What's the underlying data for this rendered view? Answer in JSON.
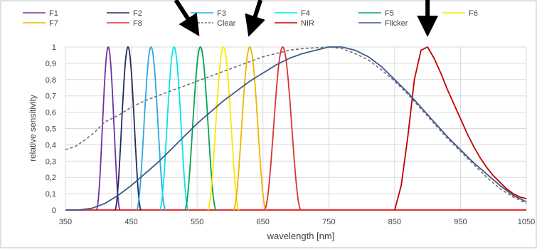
{
  "chart_data": {
    "type": "line",
    "xlabel": "wavelength [nm]",
    "ylabel": "relative sensitivity",
    "xlim": [
      350,
      1050
    ],
    "ylim": [
      0,
      1
    ],
    "x_ticks": [
      "350",
      "450",
      "550",
      "650",
      "750",
      "850",
      "950",
      "1050"
    ],
    "y_ticks": [
      "0",
      "0,1",
      "0,2",
      "0,3",
      "0,4",
      "0,5",
      "0,6",
      "0,7",
      "0,8",
      "0,9",
      "1"
    ],
    "grid": true,
    "legend_position": "top",
    "series": [
      {
        "name": "F1",
        "color": "#7030a0",
        "shape": "bell",
        "peak": 415,
        "halfwidth": 18,
        "points": [
          [
            397,
            0
          ],
          [
            415,
            1
          ],
          [
            433,
            0
          ]
        ]
      },
      {
        "name": "F2",
        "color": "#1f2d5c",
        "shape": "bell",
        "peak": 445,
        "halfwidth": 20,
        "points": [
          [
            425,
            0
          ],
          [
            445,
            1
          ],
          [
            465,
            0
          ]
        ]
      },
      {
        "name": "F3",
        "color": "#29a8e0",
        "shape": "bell",
        "peak": 480,
        "halfwidth": 22,
        "points": [
          [
            458,
            0
          ],
          [
            480,
            1
          ],
          [
            502,
            0
          ]
        ]
      },
      {
        "name": "F4",
        "color": "#00e5ee",
        "shape": "bell",
        "peak": 515,
        "halfwidth": 22,
        "points": [
          [
            493,
            0
          ],
          [
            515,
            1
          ],
          [
            537,
            0
          ]
        ]
      },
      {
        "name": "F5",
        "color": "#00a651",
        "shape": "bell",
        "peak": 555,
        "halfwidth": 24,
        "points": [
          [
            531,
            0
          ],
          [
            555,
            1
          ],
          [
            579,
            0
          ]
        ]
      },
      {
        "name": "F6",
        "color": "#ffe600",
        "shape": "bell",
        "peak": 590,
        "halfwidth": 24,
        "points": [
          [
            566,
            0
          ],
          [
            590,
            1
          ],
          [
            614,
            0
          ]
        ]
      },
      {
        "name": "F7",
        "color": "#f0b400",
        "shape": "bell",
        "peak": 630,
        "halfwidth": 25,
        "points": [
          [
            605,
            0
          ],
          [
            630,
            1
          ],
          [
            655,
            0
          ]
        ]
      },
      {
        "name": "F8",
        "color": "#e03030",
        "shape": "bell",
        "peak": 680,
        "halfwidth": 28,
        "points": [
          [
            652,
            0
          ],
          [
            680,
            1
          ],
          [
            708,
            0
          ]
        ]
      },
      {
        "name": "Clear",
        "color": "#707070",
        "dashed": true,
        "shape": "poly",
        "points": [
          [
            350,
            0.37
          ],
          [
            365,
            0.39
          ],
          [
            380,
            0.43
          ],
          [
            395,
            0.48
          ],
          [
            410,
            0.54
          ],
          [
            430,
            0.58
          ],
          [
            450,
            0.63
          ],
          [
            470,
            0.67
          ],
          [
            490,
            0.7
          ],
          [
            510,
            0.73
          ],
          [
            530,
            0.76
          ],
          [
            550,
            0.79
          ],
          [
            570,
            0.82
          ],
          [
            590,
            0.85
          ],
          [
            610,
            0.88
          ],
          [
            630,
            0.91
          ],
          [
            650,
            0.94
          ],
          [
            670,
            0.96
          ],
          [
            690,
            0.98
          ],
          [
            710,
            0.99
          ],
          [
            730,
            0.995
          ],
          [
            750,
            1.0
          ],
          [
            770,
            0.99
          ],
          [
            790,
            0.96
          ],
          [
            810,
            0.92
          ],
          [
            830,
            0.86
          ],
          [
            850,
            0.79
          ],
          [
            870,
            0.71
          ],
          [
            890,
            0.62
          ],
          [
            910,
            0.53
          ],
          [
            930,
            0.44
          ],
          [
            950,
            0.36
          ],
          [
            970,
            0.28
          ],
          [
            990,
            0.2
          ],
          [
            1010,
            0.13
          ],
          [
            1030,
            0.08
          ],
          [
            1050,
            0.04
          ]
        ]
      },
      {
        "name": "NIR",
        "color": "#c00000",
        "shape": "poly",
        "points": [
          [
            850,
            0
          ],
          [
            860,
            0.15
          ],
          [
            870,
            0.45
          ],
          [
            880,
            0.8
          ],
          [
            890,
            0.98
          ],
          [
            900,
            1.0
          ],
          [
            910,
            0.93
          ],
          [
            920,
            0.84
          ],
          [
            930,
            0.74
          ],
          [
            940,
            0.65
          ],
          [
            950,
            0.56
          ],
          [
            960,
            0.47
          ],
          [
            970,
            0.39
          ],
          [
            980,
            0.32
          ],
          [
            990,
            0.26
          ],
          [
            1000,
            0.21
          ],
          [
            1010,
            0.17
          ],
          [
            1020,
            0.13
          ],
          [
            1030,
            0.1
          ],
          [
            1040,
            0.08
          ],
          [
            1050,
            0.07
          ]
        ]
      },
      {
        "name": "Flicker",
        "color": "#3c5a8a",
        "shape": "poly",
        "points": [
          [
            350,
            0
          ],
          [
            370,
            0
          ],
          [
            390,
            0.01
          ],
          [
            410,
            0.04
          ],
          [
            430,
            0.09
          ],
          [
            450,
            0.15
          ],
          [
            470,
            0.22
          ],
          [
            490,
            0.29
          ],
          [
            510,
            0.37
          ],
          [
            530,
            0.45
          ],
          [
            550,
            0.53
          ],
          [
            570,
            0.6
          ],
          [
            590,
            0.67
          ],
          [
            610,
            0.73
          ],
          [
            630,
            0.79
          ],
          [
            650,
            0.84
          ],
          [
            670,
            0.89
          ],
          [
            690,
            0.93
          ],
          [
            710,
            0.96
          ],
          [
            730,
            0.98
          ],
          [
            750,
            1.0
          ],
          [
            770,
            1.0
          ],
          [
            790,
            0.98
          ],
          [
            810,
            0.94
          ],
          [
            830,
            0.88
          ],
          [
            850,
            0.8
          ],
          [
            870,
            0.72
          ],
          [
            890,
            0.63
          ],
          [
            910,
            0.54
          ],
          [
            930,
            0.45
          ],
          [
            950,
            0.37
          ],
          [
            970,
            0.29
          ],
          [
            990,
            0.22
          ],
          [
            1010,
            0.15
          ],
          [
            1030,
            0.09
          ],
          [
            1050,
            0.05
          ]
        ]
      }
    ],
    "zero_line": {
      "color": "#e03030",
      "points": [
        [
          350,
          0
        ],
        [
          1050,
          0
        ]
      ]
    }
  },
  "legend": [
    {
      "label": "F1",
      "color": "#7030a0",
      "dashed": false
    },
    {
      "label": "F2",
      "color": "#1f2d5c",
      "dashed": false
    },
    {
      "label": "F3",
      "color": "#29a8e0",
      "dashed": false
    },
    {
      "label": "F4",
      "color": "#00e5ee",
      "dashed": false
    },
    {
      "label": "F5",
      "color": "#00a651",
      "dashed": false
    },
    {
      "label": "F6",
      "color": "#ffe600",
      "dashed": false
    },
    {
      "label": "F7",
      "color": "#f0b400",
      "dashed": false
    },
    {
      "label": "F8",
      "color": "#e03030",
      "dashed": false
    },
    {
      "label": "Clear",
      "color": "#707070",
      "dashed": true
    },
    {
      "label": "NIR",
      "color": "#c00000",
      "dashed": false
    },
    {
      "label": "Flicker",
      "color": "#3c5a8a",
      "dashed": false
    }
  ],
  "arrows": [
    {
      "target_nm": 550
    },
    {
      "target_nm": 630
    },
    {
      "target_nm": 900
    }
  ]
}
